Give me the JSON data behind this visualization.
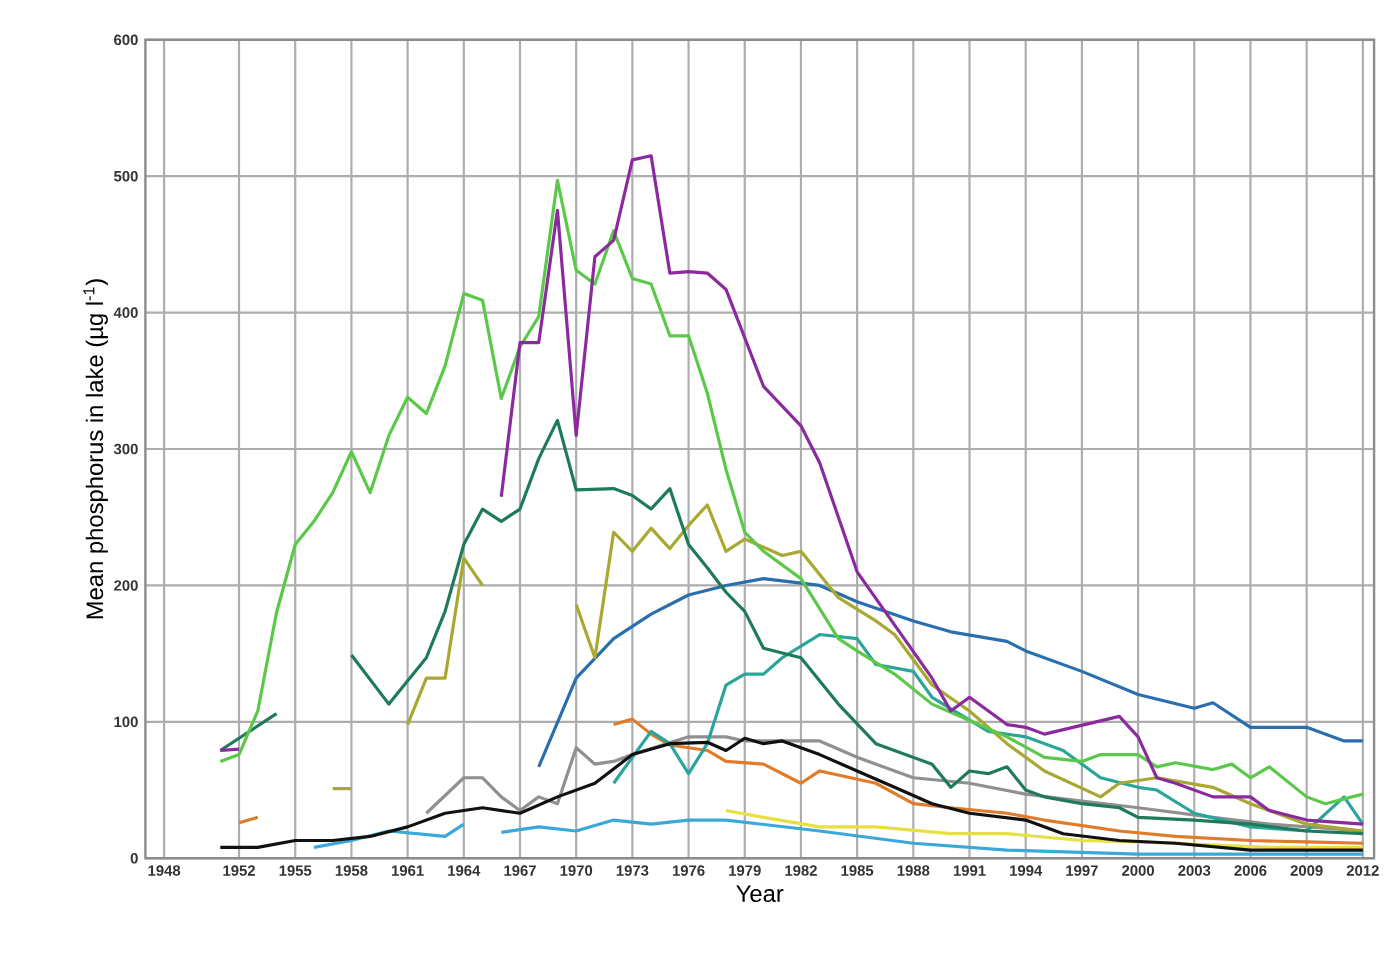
{
  "chart_data": {
    "type": "line",
    "xlabel": "Year",
    "ylabel": "Mean phosphorus in lake (µg l$^{-1}$)",
    "xlim": [
      1947,
      2012.6
    ],
    "ylim": [
      0,
      600
    ],
    "yticks": [
      0,
      100,
      200,
      300,
      400,
      500,
      600
    ],
    "xticks": [
      1948,
      1952,
      1955,
      1958,
      1961,
      1964,
      1967,
      1970,
      1973,
      1976,
      1979,
      1982,
      1985,
      1988,
      1991,
      1994,
      1997,
      2000,
      2003,
      2006,
      2009,
      2012
    ],
    "grid": true,
    "series": [
      {
        "color": "#e8e040",
        "x": [
          1978,
          1980,
          1983,
          1986,
          1990,
          1993,
          1997,
          2002,
          2007,
          2012
        ],
        "values": [
          35,
          30,
          23,
          23,
          18,
          18,
          13,
          11,
          8,
          8
        ]
      },
      {
        "color": "#3aa8d8",
        "x": [
          1956,
          1958,
          1960,
          1963,
          1964,
          1965,
          1966,
          1968,
          1970,
          1972,
          1974,
          1976,
          1978,
          1983,
          1988,
          1993,
          2000,
          2012
        ],
        "values": [
          8,
          13,
          20,
          16,
          25,
          null,
          19,
          23,
          20,
          28,
          25,
          28,
          28,
          20,
          11,
          6,
          3,
          3
        ]
      },
      {
        "color": "#e07b2a",
        "x": [
          1952,
          1953,
          1960,
          1972,
          1973,
          1974,
          1975,
          1977,
          1978,
          1980,
          1982,
          1983,
          1986,
          1988,
          1990,
          1993,
          1995,
          1999,
          2002,
          2006,
          2009,
          2012
        ],
        "values": [
          26,
          30,
          null,
          98,
          102,
          91,
          83,
          79,
          71,
          69,
          55,
          64,
          55,
          40,
          37,
          33,
          28,
          20,
          16,
          13,
          12,
          11
        ]
      },
      {
        "color": "#909090",
        "x": [
          1962,
          1964,
          1965,
          1966,
          1967,
          1968,
          1969,
          1970,
          1971,
          1972,
          1973,
          1976,
          1978,
          1979,
          1983,
          1985,
          1988,
          1991,
          1994,
          1997,
          2000,
          2004,
          2007,
          2012
        ],
        "values": [
          33,
          59,
          59,
          45,
          35,
          45,
          40,
          81,
          69,
          71,
          76,
          89,
          89,
          86,
          86,
          74,
          59,
          55,
          47,
          42,
          37,
          30,
          25,
          20
        ]
      },
      {
        "color": "#2aa59a",
        "x": [
          1972,
          1974,
          1975,
          1976,
          1977,
          1978,
          1979,
          1980,
          1981,
          1983,
          1985,
          1986,
          1988,
          1989,
          1992,
          1994,
          1996,
          1998,
          2000,
          2001,
          2003,
          2006,
          2009,
          2011,
          2012
        ],
        "values": [
          55,
          93,
          84,
          62,
          84,
          127,
          135,
          135,
          147,
          164,
          161,
          142,
          137,
          118,
          93,
          89,
          79,
          59,
          52,
          50,
          33,
          23,
          20,
          45,
          25
        ]
      },
      {
        "color": "#2a6fad",
        "x": [
          1968,
          1970,
          1972,
          1974,
          1976,
          1978,
          1980,
          1983,
          1985,
          1988,
          1990,
          1993,
          1994,
          1997,
          2000,
          2003,
          2004,
          2006,
          2009,
          2011,
          2012
        ],
        "values": [
          67,
          132,
          161,
          179,
          193,
          200,
          205,
          200,
          188,
          174,
          166,
          159,
          152,
          137,
          120,
          110,
          114,
          96,
          96,
          86,
          86
        ]
      },
      {
        "color": "#a8a832",
        "x": [
          1957,
          1958,
          1959,
          1961,
          1962,
          1963,
          1964,
          1965,
          1967,
          1970,
          1971,
          1972,
          1973,
          1974,
          1975,
          1976,
          1977,
          1978,
          1979,
          1981,
          1982,
          1984,
          1986,
          1987,
          1989,
          1991,
          1993,
          1995,
          1998,
          1999,
          2001,
          2004,
          2006,
          2009,
          2012
        ],
        "values": [
          51,
          51,
          null,
          98,
          132,
          132,
          220,
          200,
          null,
          186,
          147,
          239,
          225,
          242,
          227,
          244,
          259,
          225,
          234,
          222,
          225,
          191,
          174,
          164,
          127,
          108,
          84,
          64,
          45,
          55,
          59,
          52,
          40,
          25,
          20
        ]
      },
      {
        "color": "#1e7a5a",
        "x": [
          1951,
          1954,
          1957,
          1958,
          1960,
          1962,
          1963,
          1964,
          1965,
          1966,
          1967,
          1968,
          1969,
          1970,
          1972,
          1973,
          1974,
          1975,
          1976,
          1977,
          1978,
          1979,
          1980,
          1982,
          1984,
          1986,
          1987,
          1989,
          1990,
          1991,
          1992,
          1993,
          1994,
          1995,
          1997,
          1999,
          2000,
          2003,
          2006,
          2009,
          2012
        ],
        "values": [
          79,
          106,
          null,
          149,
          113,
          147,
          181,
          230,
          256,
          247,
          256,
          293,
          321,
          270,
          271,
          266,
          256,
          271,
          230,
          213,
          195,
          181,
          154,
          147,
          113,
          84,
          79,
          69,
          52,
          64,
          62,
          67,
          50,
          45,
          40,
          37,
          30,
          28,
          25,
          20,
          18
        ]
      },
      {
        "color": "#5cc84a",
        "x": [
          1951,
          1952,
          1953,
          1954,
          1955,
          1956,
          1957,
          1958,
          1959,
          1960,
          1961,
          1962,
          1963,
          1964,
          1965,
          1966,
          1967,
          1968,
          1969,
          1970,
          1971,
          1972,
          1973,
          1974,
          1975,
          1976,
          1977,
          1978,
          1979,
          1980,
          1982,
          1984,
          1985,
          1987,
          1989,
          1991,
          1993,
          1995,
          1997,
          1998,
          2000,
          2001,
          2002,
          2004,
          2005,
          2006,
          2007,
          2009,
          2010,
          2012
        ],
        "values": [
          71,
          76,
          108,
          180,
          230,
          247,
          268,
          298,
          268,
          310,
          338,
          326,
          361,
          414,
          409,
          337,
          375,
          397,
          497,
          431,
          421,
          460,
          425,
          421,
          383,
          383,
          341,
          285,
          239,
          225,
          205,
          161,
          152,
          135,
          113,
          101,
          89,
          74,
          71,
          76,
          76,
          67,
          70,
          65,
          69,
          59,
          67,
          45,
          40,
          47
        ]
      },
      {
        "color": "#111111",
        "x": [
          1951,
          1953,
          1955,
          1957,
          1959,
          1961,
          1963,
          1965,
          1967,
          1969,
          1971,
          1973,
          1975,
          1977,
          1978,
          1979,
          1980,
          1981,
          1983,
          1985,
          1987,
          1989,
          1991,
          1994,
          1996,
          1999,
          2002,
          2006,
          2012
        ],
        "values": [
          8,
          8,
          13,
          13,
          16,
          23,
          33,
          37,
          33,
          45,
          55,
          76,
          84,
          85,
          79,
          88,
          84,
          86,
          76,
          64,
          52,
          40,
          33,
          28,
          18,
          13,
          11,
          6,
          6
        ]
      },
      {
        "color": "#8b2a9e",
        "x": [
          1951,
          1952,
          1959,
          1966,
          1967,
          1968,
          1969,
          1970,
          1971,
          1972,
          1973,
          1974,
          1975,
          1976,
          1977,
          1978,
          1980,
          1982,
          1983,
          1985,
          1987,
          1989,
          1990,
          1991,
          1993,
          1994,
          1995,
          1999,
          2000,
          2001,
          2002,
          2004,
          2006,
          2007,
          2009,
          2012
        ],
        "values": [
          79,
          80,
          null,
          265,
          378,
          378,
          475,
          310,
          441,
          453,
          512,
          515,
          429,
          430,
          429,
          417,
          346,
          317,
          290,
          210,
          171,
          132,
          108,
          118,
          98,
          96,
          91,
          104,
          89,
          59,
          55,
          45,
          45,
          35,
          28,
          25
        ]
      }
    ]
  }
}
